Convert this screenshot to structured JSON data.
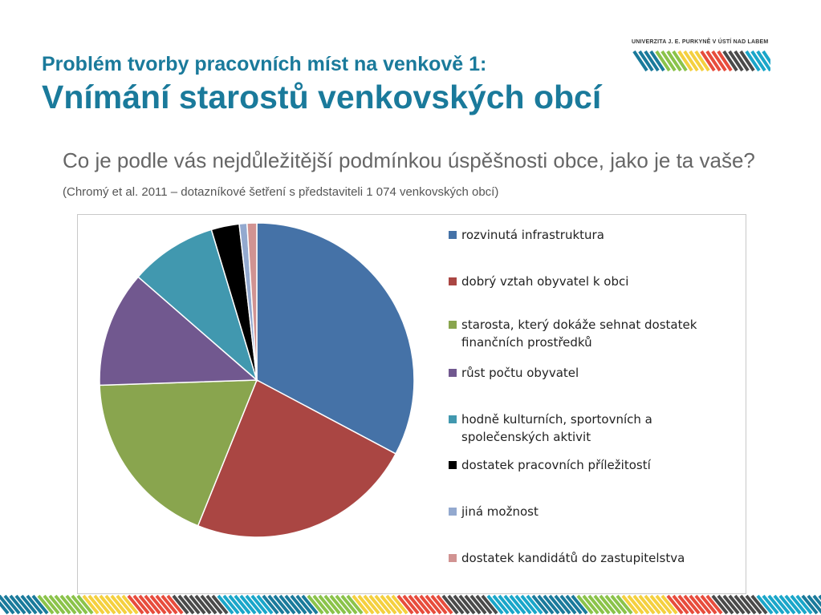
{
  "slide": {
    "title_line1": "Problém tvorby pracovních míst na venkově 1:",
    "title_line2": "Vnímání starostů venkovských obcí",
    "question": "Co je podle vás nejdůležitější podmínkou úspěšnosti obce, jako je ta vaše?",
    "citation": "(Chromý et al. 2011 – dotazníkové šetření s představiteli 1 074 venkovských obcí)"
  },
  "logo": {
    "text": "UNIVERZITA J. E. PURKYNĚ V ÚSTÍ NAD LABEM"
  },
  "stripe_colors": [
    "#1a7a9b",
    "#8bc34a",
    "#f4d03f",
    "#e74c3c",
    "#4a4a4a",
    "#1aa6c9"
  ],
  "chart_data": {
    "type": "pie",
    "title": "",
    "legend_position": "right",
    "categories": [
      "rozvinutá infrastruktura",
      "dobrý vztah obyvatel k obci",
      "starosta, který dokáže sehnat dostatek finančních prostředků",
      "růst počtu obyvatel",
      "hodně kulturních, sportovních a společenských aktivit",
      "dostatek pracovních příležitostí",
      "jiná možnost",
      "dostatek kandidátů do zastupitelstva"
    ],
    "values": [
      33.0,
      23.5,
      18.5,
      12.0,
      9.0,
      2.9,
      0.8,
      1.0
    ],
    "colors": [
      "#4572a7",
      "#aa4643",
      "#89a54e",
      "#71588f",
      "#4198af",
      "#000000",
      "#93a9cf",
      "#d19392"
    ]
  }
}
